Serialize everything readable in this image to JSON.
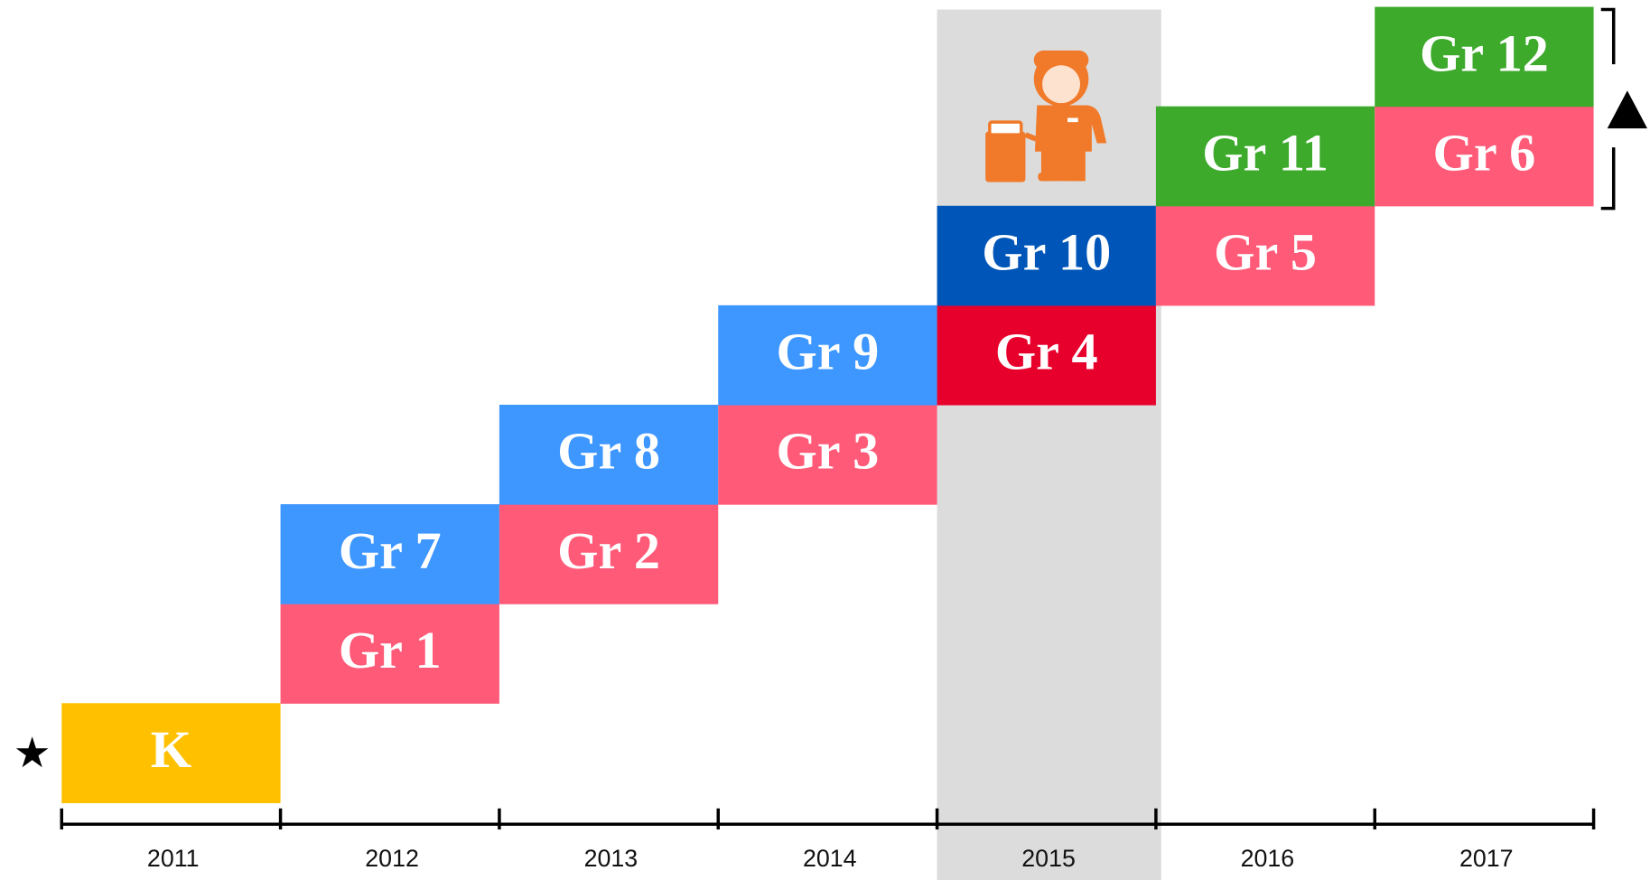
{
  "columns": [
    {
      "year": "2011",
      "blocks": [
        {
          "label": "K",
          "color": "#ffc000"
        }
      ]
    },
    {
      "year": "2012",
      "blocks": [
        {
          "label": "Gr 1",
          "color": "#ff5a78"
        },
        {
          "label": "Gr 7",
          "color": "#3d97ff"
        }
      ]
    },
    {
      "year": "2013",
      "blocks": [
        {
          "label": "Gr 2",
          "color": "#ff5a78"
        },
        {
          "label": "Gr 8",
          "color": "#3d97ff"
        }
      ]
    },
    {
      "year": "2014",
      "blocks": [
        {
          "label": "Gr 3",
          "color": "#ff5a78"
        },
        {
          "label": "Gr 9",
          "color": "#3d97ff"
        }
      ]
    },
    {
      "year": "2015",
      "highlight": true,
      "blocks": [
        {
          "label": "Gr 4",
          "color": "#e8002c"
        },
        {
          "label": "Gr 10",
          "color": "#0055b8"
        }
      ]
    },
    {
      "year": "2016",
      "blocks": [
        {
          "label": "Gr 5",
          "color": "#ff5a78"
        },
        {
          "label": "Gr 11",
          "color": "#3daa2c"
        }
      ]
    },
    {
      "year": "2017",
      "blocks": [
        {
          "label": "Gr 6",
          "color": "#ff5a78"
        },
        {
          "label": "Gr 12",
          "color": "#3daa2c"
        }
      ]
    }
  ]
}
